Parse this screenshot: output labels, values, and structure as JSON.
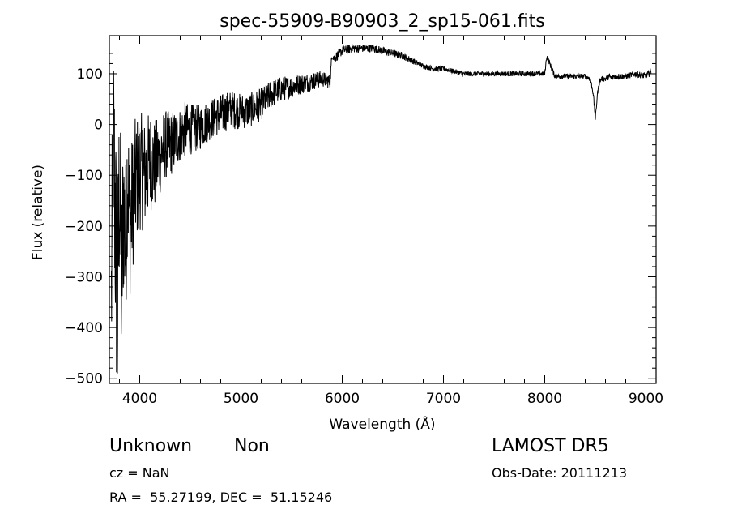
{
  "chart_data": {
    "type": "line",
    "title": "spec-55909-B90903_2_sp15-061.fits",
    "xlabel": "Wavelength (Å)",
    "ylabel": "Flux (relative)",
    "xlim": [
      3700,
      9100
    ],
    "ylim": [
      -510,
      175
    ],
    "xticks": [
      4000,
      5000,
      6000,
      7000,
      8000,
      9000
    ],
    "yticks": [
      -500,
      -400,
      -300,
      -200,
      -100,
      0,
      100
    ],
    "xtick_labels": [
      "4000",
      "5000",
      "6000",
      "7000",
      "8000",
      "9000"
    ],
    "ytick_labels": [
      "−500",
      "−400",
      "−300",
      "−200",
      "−100",
      "0",
      "100"
    ],
    "grid": false,
    "series": [
      {
        "x": [
          3720,
          3740,
          3760,
          3780,
          3800,
          3820,
          3840,
          3860,
          3880,
          3900,
          3950,
          4000,
          4050,
          4100,
          4150,
          4200,
          4250,
          4300,
          4350,
          4400,
          4450,
          4500,
          4600,
          4700,
          4800,
          4900,
          5000,
          5100,
          5200,
          5300,
          5400,
          5500,
          5600,
          5700,
          5800,
          5880,
          5900,
          5920,
          6000,
          6100,
          6200,
          6300,
          6400,
          6500,
          6600,
          6700,
          6800,
          6900,
          7000,
          7100,
          7200,
          7300,
          7400,
          7500,
          7600,
          7700,
          7800,
          7900,
          8000,
          8020,
          8100,
          8200,
          8300,
          8400,
          8450,
          8480,
          8500,
          8520,
          8542,
          8560,
          8600,
          8640,
          8662,
          8680,
          8700,
          8800,
          8900,
          9000,
          9050
        ],
        "y": [
          -350,
          -20,
          -200,
          -380,
          -100,
          -330,
          -150,
          -250,
          -80,
          -200,
          -120,
          -90,
          -100,
          -70,
          -80,
          -60,
          -40,
          -40,
          -30,
          -20,
          -10,
          -10,
          -5,
          10,
          20,
          30,
          25,
          30,
          40,
          60,
          70,
          75,
          80,
          85,
          90,
          85,
          140,
          130,
          145,
          150,
          150,
          150,
          145,
          140,
          135,
          125,
          115,
          110,
          110,
          105,
          100,
          100,
          100,
          100,
          100,
          100,
          100,
          100,
          100,
          135,
          95,
          95,
          95,
          95,
          90,
          60,
          10,
          60,
          85,
          90,
          90,
          95,
          90,
          95,
          95,
          95,
          100,
          95,
          105
        ],
        "noise": [
          200,
          220,
          260,
          250,
          220,
          200,
          190,
          170,
          160,
          150,
          130,
          120,
          110,
          100,
          90,
          80,
          70,
          65,
          60,
          55,
          55,
          50,
          45,
          40,
          40,
          38,
          36,
          34,
          32,
          28,
          25,
          22,
          20,
          18,
          16,
          14,
          10,
          10,
          9,
          9,
          8,
          8,
          8,
          7,
          7,
          6,
          5,
          5,
          5,
          5,
          5,
          5,
          5,
          5,
          5,
          5,
          5,
          5,
          5,
          5,
          5,
          5,
          5,
          5,
          5,
          5,
          5,
          5,
          5,
          5,
          6,
          6,
          6,
          6,
          6,
          6,
          6,
          7,
          7
        ]
      }
    ]
  },
  "info": {
    "object_class": "Unknown",
    "object_subclass": "Non",
    "survey": "LAMOST DR5",
    "cz": "cz = NaN",
    "obs_date": "Obs-Date: 20111213",
    "radec": "RA =  55.27199, DEC =  51.15246"
  }
}
